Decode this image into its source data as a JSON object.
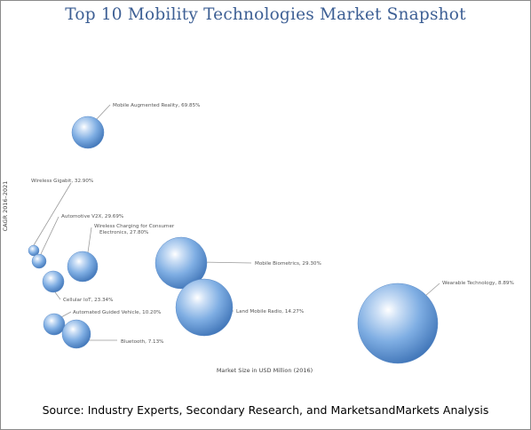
{
  "page": {
    "title": "Top 10 Mobility Technologies Market Snapshot",
    "source_note": "Source: Industry Experts, Secondary Research, and MarketsandMarkets Analysis"
  },
  "chart_data": {
    "type": "scatter",
    "title": "Top 10 Mobility Technologies Market Snapshot",
    "xlabel": "Market Size in USD Million (2016)",
    "ylabel": "CAGR 2016–2021",
    "grid": false,
    "legend": "none",
    "bubble_color": "#6f9fd8",
    "points": [
      {
        "label": "Mobile Augmented Reality, 69.85%",
        "cagr": 69.85,
        "size": 0.14
      },
      {
        "label": "Wireless Gigabit, 32.90%",
        "cagr": 32.9,
        "size": 0.055
      },
      {
        "label": "Automotive V2X, 29.69%",
        "cagr": 29.69,
        "size": 0.07
      },
      {
        "label": "Wireless Charging for Consumer Electronics, 27.80%",
        "cagr": 27.8,
        "size": 0.19
      },
      {
        "label": "Cellular IoT, 23.34%",
        "cagr": 23.34,
        "size": 0.1
      },
      {
        "label": "Automated Guided Vehicle, 10.20%",
        "cagr": 10.2,
        "size": 0.1
      },
      {
        "label": "Bluetooth, 7.13%",
        "cagr": 7.13,
        "size": 0.16
      },
      {
        "label": "Mobile Biometrics, 29.30%",
        "cagr": 29.3,
        "size": 0.49
      },
      {
        "label": "Land Mobile Radio, 14.27%",
        "cagr": 14.27,
        "size": 0.57
      },
      {
        "label": "Wearable Technology, 8.89%",
        "cagr": 8.89,
        "size": 1.0
      }
    ]
  }
}
